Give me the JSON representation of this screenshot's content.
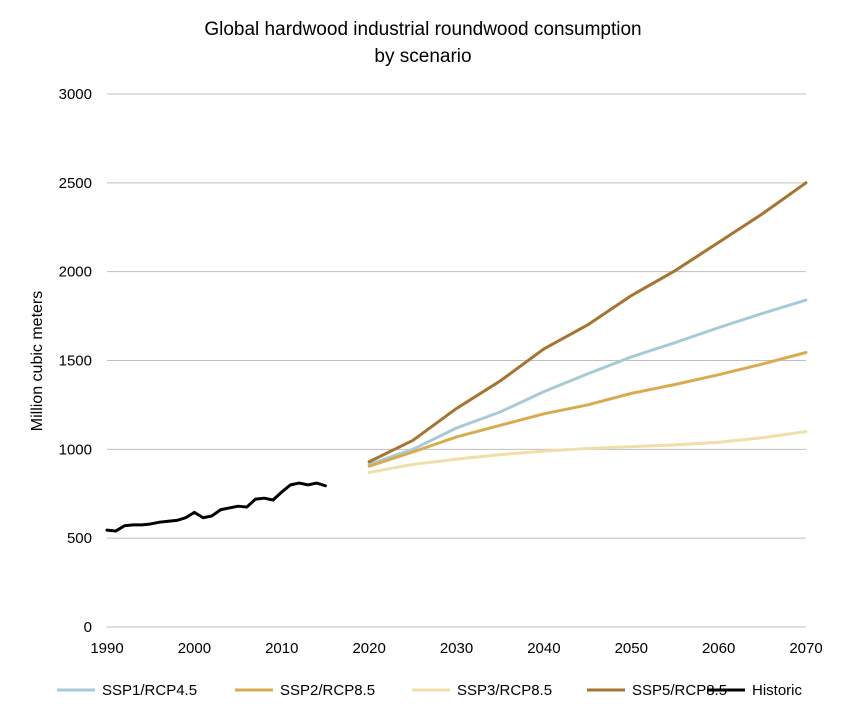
{
  "chart_data": {
    "type": "line",
    "title_line1": "Global hardwood industrial roundwood consumption",
    "title_line2": "by scenario",
    "ylabel": "Million cubic meters",
    "xlabel": "",
    "xlim": [
      1990,
      2070
    ],
    "ylim": [
      0,
      3000
    ],
    "x_ticks": [
      1990,
      2000,
      2010,
      2020,
      2030,
      2040,
      2050,
      2060,
      2070
    ],
    "y_ticks": [
      0,
      500,
      1000,
      1500,
      2000,
      2500,
      3000
    ],
    "grid": "horizontal",
    "legend_position": "bottom",
    "series": [
      {
        "name": "SSP1/RCP4.5",
        "color": "#a7cbd6",
        "x": [
          2020,
          2025,
          2030,
          2035,
          2040,
          2045,
          2050,
          2055,
          2060,
          2065,
          2070
        ],
        "values": [
          915,
          1000,
          1120,
          1210,
          1325,
          1425,
          1520,
          1600,
          1685,
          1765,
          1840
        ]
      },
      {
        "name": "SSP2/RCP8.5",
        "color": "#d8ac4e",
        "x": [
          2020,
          2025,
          2030,
          2035,
          2040,
          2045,
          2050,
          2055,
          2060,
          2065,
          2070
        ],
        "values": [
          905,
          985,
          1070,
          1135,
          1200,
          1250,
          1315,
          1365,
          1420,
          1480,
          1545
        ]
      },
      {
        "name": "SSP3/RCP8.5",
        "color": "#f0dfa8",
        "x": [
          2020,
          2025,
          2030,
          2035,
          2040,
          2045,
          2050,
          2055,
          2060,
          2065,
          2070
        ],
        "values": [
          870,
          915,
          945,
          970,
          990,
          1005,
          1015,
          1025,
          1040,
          1065,
          1100
        ]
      },
      {
        "name": "SSP5/RCP8.5",
        "color": "#a5742f",
        "x": [
          2020,
          2025,
          2030,
          2035,
          2040,
          2045,
          2050,
          2055,
          2060,
          2065,
          2070
        ],
        "values": [
          930,
          1050,
          1230,
          1385,
          1565,
          1700,
          1865,
          2005,
          2165,
          2325,
          2500
        ]
      },
      {
        "name": "Historic",
        "color": "#000000",
        "x": [
          1990,
          1991,
          1992,
          1993,
          1994,
          1995,
          1996,
          1997,
          1998,
          1999,
          2000,
          2001,
          2002,
          2003,
          2004,
          2005,
          2006,
          2007,
          2008,
          2009,
          2010,
          2011,
          2012,
          2013,
          2014,
          2015
        ],
        "values": [
          545,
          540,
          570,
          575,
          575,
          580,
          590,
          595,
          600,
          615,
          645,
          615,
          625,
          660,
          670,
          680,
          675,
          720,
          725,
          715,
          760,
          800,
          810,
          800,
          810,
          795
        ]
      }
    ]
  }
}
